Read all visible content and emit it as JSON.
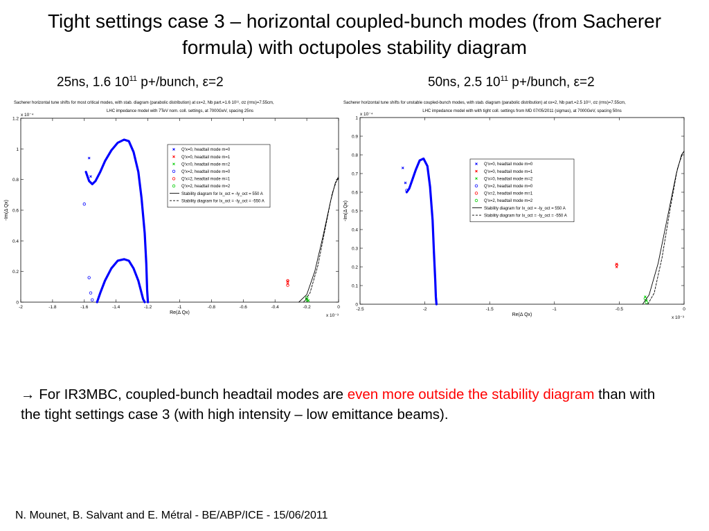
{
  "slide": {
    "title": "Tight settings case 3 – horizontal coupled-bunch modes (from Sacherer formula) with octupoles stability diagram",
    "footer": "N. Mounet, B. Salvant and E. Métral - BE/ABP/ICE - 15/06/2011",
    "bullet": {
      "arrow": "→",
      "text_before": " For IR3MBC, coupled-bunch headtail modes are ",
      "highlight": "even more outside the stability diagram",
      "text_after": " than with the tight settings case 3 (with high intensity – low emittance beams).",
      "highlight_color": "#ff0000"
    }
  },
  "panels": [
    {
      "subtitle": {
        "prefix": "25ns, 1.6 10",
        "exp": "11",
        "mid": " p+/bunch, ",
        "eps": "ε",
        "suffix": "=2"
      },
      "chart_data": {
        "type": "scatter",
        "title_line1": "Sacherer horizontal tune shifts for most critical modes, with stab. diagram (parabolic distribution) at εx=2, Nb part.=1.6 10¹¹, σz (rms)=7.55cm,",
        "title_line2": "LHC impedance model with 7TeV nom. coll. settings, at 7000GeV, spacing 25ns",
        "xlabel": "Re(Δ Qx)",
        "ylabel": "-Im(Δ Qx)",
        "x_exponent": "x 10⁻³",
        "y_exponent": "x 10⁻⁴",
        "xlim": [
          -2,
          0
        ],
        "ylim": [
          0,
          1.2
        ],
        "xticks": [
          -2,
          -1.8,
          -1.6,
          -1.4,
          -1.2,
          -1,
          -0.8,
          -0.6,
          -0.4,
          -0.2,
          0
        ],
        "yticks": [
          0,
          0.2,
          0.4,
          0.6,
          0.8,
          1,
          1.2
        ],
        "grid": false,
        "legend_position": "top-right",
        "series": [
          {
            "name": "Q'x=0, headtail mode m=0",
            "marker": "x",
            "color": "#0000ff",
            "curves": [
              {
                "x": [
                  -1.59,
                  -1.57,
                  -1.55,
                  -1.53,
                  -1.5,
                  -1.47,
                  -1.43,
                  -1.39,
                  -1.35,
                  -1.32,
                  -1.29,
                  -1.26,
                  -1.24,
                  -1.22,
                  -1.21,
                  -1.205,
                  -1.2
                ],
                "y": [
                  0.85,
                  0.79,
                  0.77,
                  0.79,
                  0.85,
                  0.92,
                  0.99,
                  1.04,
                  1.06,
                  1.05,
                  0.98,
                  0.85,
                  0.68,
                  0.45,
                  0.25,
                  0.08,
                  0
                ]
              },
              {
                "x": [
                  -1.52,
                  -1.5,
                  -1.47,
                  -1.43,
                  -1.39,
                  -1.35,
                  -1.32,
                  -1.29,
                  -1.26,
                  -1.24,
                  -1.23,
                  -1.22
                ],
                "y": [
                  0,
                  0.06,
                  0.14,
                  0.22,
                  0.27,
                  0.28,
                  0.27,
                  0.22,
                  0.14,
                  0.06,
                  0.02,
                  0
                ]
              }
            ],
            "points": [
              {
                "x": -1.57,
                "y": 0.94
              },
              {
                "x": -1.56,
                "y": 0.82
              }
            ]
          },
          {
            "name": "Q'x=0, headtail mode m=1",
            "marker": "x",
            "color": "#ff0000",
            "curves": [],
            "points": [
              {
                "x": -0.32,
                "y": 0.135
              },
              {
                "x": -0.32,
                "y": 0.12
              }
            ]
          },
          {
            "name": "Q'x=0, headtail mode m=2",
            "marker": "x",
            "color": "#00cc00",
            "curves": [],
            "points": [
              {
                "x": -0.2,
                "y": 0.02
              },
              {
                "x": -0.19,
                "y": 0.01
              }
            ]
          },
          {
            "name": "Q'x=2, headtail mode m=0",
            "marker": "o",
            "color": "#0000ff",
            "curves": [],
            "points": [
              {
                "x": -1.6,
                "y": 0.64
              },
              {
                "x": -1.57,
                "y": 0.16
              },
              {
                "x": -1.56,
                "y": 0.06
              },
              {
                "x": -1.55,
                "y": 0.015
              }
            ]
          },
          {
            "name": "Q'x=2, headtail mode m=1",
            "marker": "o",
            "color": "#ff0000",
            "curves": [],
            "points": [
              {
                "x": -0.32,
                "y": 0.14
              },
              {
                "x": -0.32,
                "y": 0.11
              }
            ]
          },
          {
            "name": "Q'x=2, headtail mode m=2",
            "marker": "o",
            "color": "#00cc00",
            "curves": [],
            "points": [
              {
                "x": -0.2,
                "y": 0.03
              },
              {
                "x": -0.2,
                "y": 0.015
              }
            ]
          },
          {
            "name": "Stability diagram for Ix_oct = -Iy_oct = 550 A",
            "marker": "line-solid",
            "color": "#000000",
            "curves": [
              {
                "x": [
                  -0.25,
                  -0.2,
                  -0.15,
                  -0.1,
                  -0.05,
                  -0.02,
                  0
                ],
                "y": [
                  0,
                  0.05,
                  0.2,
                  0.42,
                  0.66,
                  0.78,
                  0.81
                ]
              }
            ],
            "points": []
          },
          {
            "name": "Stability diagram for Ix_oct = -Iy_oct = -550 A",
            "marker": "line-dashed",
            "color": "#000000",
            "curves": [
              {
                "x": [
                  -0.22,
                  -0.18,
                  -0.13,
                  -0.08,
                  -0.04,
                  -0.01,
                  0
                ],
                "y": [
                  0,
                  0.06,
                  0.24,
                  0.5,
                  0.71,
                  0.8,
                  0.82
                ]
              }
            ],
            "points": []
          }
        ]
      }
    },
    {
      "subtitle": {
        "prefix": "50ns, 2.5 10",
        "exp": "11",
        "mid": " p+/bunch, ",
        "eps": "ε",
        "suffix": "=2"
      },
      "chart_data": {
        "type": "scatter",
        "title_line1": "Sacherer horizontal tune shifts for unstable coupled-bunch modes, with stab. diagram (parabolic distribution) at εx=2, Nb part.=2.5 10¹¹, σz (rms)=7.55cm,",
        "title_line2": "LHC impedance model with with tight coll. settings from MD 07/05/2011 (sigmas), at 7000GeV, spacing 50ns",
        "xlabel": "Re(Δ Qx)",
        "ylabel": "-Im(Δ Qx)",
        "x_exponent": "x 10⁻³",
        "y_exponent": "x 10⁻⁴",
        "xlim": [
          -2.5,
          0
        ],
        "ylim": [
          0,
          1
        ],
        "xticks": [
          -2.5,
          -2,
          -1.5,
          -1,
          -0.5,
          0
        ],
        "yticks": [
          0,
          0.1,
          0.2,
          0.3,
          0.4,
          0.5,
          0.6,
          0.7,
          0.8,
          0.9,
          1
        ],
        "grid": false,
        "legend_position": "top-right",
        "series": [
          {
            "name": "Q'x=0, headtail mode m=0",
            "marker": "x",
            "color": "#0000ff",
            "curves": [
              {
                "x": [
                  -2.14,
                  -2.12,
                  -2.1,
                  -2.07,
                  -2.04,
                  -2.01,
                  -1.98,
                  -1.96,
                  -1.94,
                  -1.93,
                  -1.92,
                  -1.915,
                  -1.91
                ],
                "y": [
                  0.6,
                  0.62,
                  0.66,
                  0.72,
                  0.77,
                  0.78,
                  0.74,
                  0.63,
                  0.45,
                  0.28,
                  0.13,
                  0.04,
                  0
                ]
              }
            ],
            "points": [
              {
                "x": -2.17,
                "y": 0.73
              },
              {
                "x": -2.15,
                "y": 0.65
              }
            ]
          },
          {
            "name": "Q'x=0, headtail mode m=1",
            "marker": "x",
            "color": "#ff0000",
            "curves": [],
            "points": [
              {
                "x": -0.52,
                "y": 0.215
              },
              {
                "x": -0.52,
                "y": 0.2
              }
            ]
          },
          {
            "name": "Q'x=0, headtail mode m=2",
            "marker": "x",
            "color": "#00cc00",
            "curves": [],
            "points": [
              {
                "x": -0.3,
                "y": 0.04
              },
              {
                "x": -0.29,
                "y": 0.02
              }
            ]
          },
          {
            "name": "Q'x=2, headtail mode m=0",
            "marker": "o",
            "color": "#0000ff",
            "curves": [],
            "points": [
              {
                "x": -2.14,
                "y": 0.61
              }
            ]
          },
          {
            "name": "Q'x=2, headtail mode m=1",
            "marker": "o",
            "color": "#ff0000",
            "curves": [],
            "points": [
              {
                "x": -0.52,
                "y": 0.21
              }
            ]
          },
          {
            "name": "Q'x=2, headtail mode m=2",
            "marker": "o",
            "color": "#00cc00",
            "curves": [],
            "points": [
              {
                "x": -0.3,
                "y": 0.03
              },
              {
                "x": -0.29,
                "y": 0.01
              }
            ]
          },
          {
            "name": "Stability diagram for Ix_oct = -Iy_oct = 550 A",
            "marker": "line-solid",
            "color": "#000000",
            "curves": [
              {
                "x": [
                  -0.32,
                  -0.27,
                  -0.2,
                  -0.13,
                  -0.06,
                  -0.02,
                  0
                ],
                "y": [
                  0,
                  0.05,
                  0.22,
                  0.46,
                  0.7,
                  0.8,
                  0.82
                ]
              }
            ],
            "points": []
          },
          {
            "name": "Stability diagram for Ix_oct = -Iy_oct = -550 A",
            "marker": "line-dashed",
            "color": "#000000",
            "curves": [
              {
                "x": [
                  -0.28,
                  -0.23,
                  -0.17,
                  -0.11,
                  -0.05,
                  -0.01,
                  0
                ],
                "y": [
                  0,
                  0.06,
                  0.25,
                  0.5,
                  0.73,
                  0.81,
                  0.82
                ]
              }
            ],
            "points": []
          }
        ]
      }
    }
  ]
}
